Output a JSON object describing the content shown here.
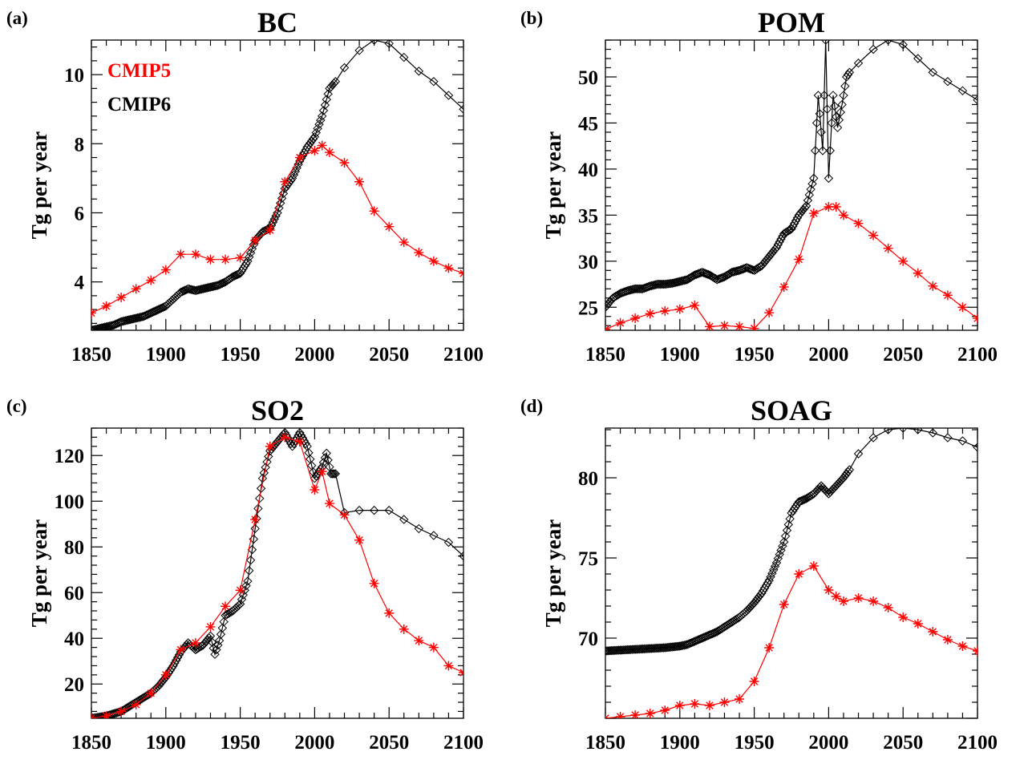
{
  "chart_data": [
    {
      "type": "line",
      "panel_label": "(a)",
      "title": "BC",
      "ylabel": "Tg per year",
      "xlim": [
        1850,
        2100
      ],
      "ylim": [
        2.6,
        11.0
      ],
      "xticks": [
        "1850",
        "1900",
        "1950",
        "2000",
        "2050",
        "2100"
      ],
      "yticks": [
        4,
        6,
        8,
        10
      ],
      "legend": [
        "CMIP5",
        "CMIP6"
      ],
      "legend_colors": [
        "#ff0000",
        "#000000"
      ],
      "series": [
        {
          "name": "CMIP6",
          "color": "#000000",
          "marker": "diamond",
          "x_end_annual": 2014,
          "x": [
            1850,
            1855,
            1860,
            1865,
            1870,
            1875,
            1880,
            1885,
            1890,
            1895,
            1900,
            1905,
            1910,
            1915,
            1920,
            1925,
            1930,
            1935,
            1940,
            1945,
            1950,
            1955,
            1960,
            1965,
            1970,
            1975,
            1980,
            1985,
            1990,
            1995,
            2000,
            2005,
            2010,
            2014,
            2020,
            2030,
            2040,
            2050,
            2060,
            2070,
            2080,
            2090,
            2100
          ],
          "y": [
            2.6,
            2.65,
            2.7,
            2.75,
            2.85,
            2.9,
            2.95,
            3.0,
            3.1,
            3.2,
            3.3,
            3.5,
            3.7,
            3.8,
            3.75,
            3.8,
            3.85,
            3.9,
            4.0,
            4.15,
            4.25,
            4.6,
            5.2,
            5.45,
            5.55,
            6.0,
            6.7,
            7.0,
            7.5,
            7.9,
            8.2,
            8.8,
            9.6,
            9.8,
            10.2,
            10.7,
            11.0,
            10.9,
            10.5,
            10.1,
            9.8,
            9.4,
            9.0
          ]
        },
        {
          "name": "CMIP5",
          "color": "#ff0000",
          "marker": "asterisk",
          "x": [
            1850,
            1860,
            1870,
            1880,
            1890,
            1900,
            1910,
            1920,
            1930,
            1940,
            1950,
            1960,
            1970,
            1980,
            1990,
            2000,
            2005,
            2010,
            2020,
            2030,
            2040,
            2050,
            2060,
            2070,
            2080,
            2090,
            2100
          ],
          "y": [
            3.1,
            3.3,
            3.55,
            3.8,
            4.05,
            4.35,
            4.8,
            4.8,
            4.65,
            4.65,
            4.7,
            5.2,
            5.5,
            6.9,
            7.6,
            7.8,
            7.95,
            7.75,
            7.45,
            6.9,
            6.05,
            5.6,
            5.15,
            4.85,
            4.6,
            4.4,
            4.25
          ]
        }
      ]
    },
    {
      "type": "line",
      "panel_label": "(b)",
      "title": "POM",
      "ylabel": "Tg per year",
      "xlim": [
        1850,
        2100
      ],
      "ylim": [
        22.5,
        54.0
      ],
      "xticks": [
        "1850",
        "1900",
        "1950",
        "2000",
        "2050",
        "2100"
      ],
      "yticks": [
        25,
        30,
        35,
        40,
        45,
        50
      ],
      "series": [
        {
          "name": "CMIP6",
          "color": "#000000",
          "marker": "diamond",
          "x_end_annual": 2014,
          "x": [
            1850,
            1855,
            1860,
            1865,
            1870,
            1875,
            1880,
            1885,
            1890,
            1895,
            1900,
            1905,
            1910,
            1915,
            1920,
            1925,
            1930,
            1935,
            1940,
            1945,
            1950,
            1955,
            1960,
            1965,
            1970,
            1975,
            1980,
            1985,
            1990,
            1993,
            1996,
            1998,
            2000,
            2003,
            2006,
            2009,
            2012,
            2014,
            2020,
            2030,
            2040,
            2050,
            2060,
            2070,
            2080,
            2090,
            2100
          ],
          "y": [
            25.0,
            26.0,
            26.5,
            26.8,
            27.0,
            27.0,
            27.3,
            27.5,
            27.5,
            27.6,
            27.8,
            28.0,
            28.5,
            28.8,
            28.5,
            28.0,
            28.3,
            28.8,
            29.0,
            29.3,
            29.0,
            29.5,
            30.5,
            31.5,
            33.0,
            33.5,
            35.0,
            36.0,
            39.0,
            48.0,
            42.0,
            54.0,
            39.0,
            48.0,
            44.5,
            47.0,
            50.0,
            50.5,
            51.5,
            53.0,
            54.0,
            53.5,
            52.0,
            50.5,
            49.5,
            48.5,
            47.5
          ]
        },
        {
          "name": "CMIP5",
          "color": "#ff0000",
          "marker": "asterisk",
          "x": [
            1850,
            1860,
            1870,
            1880,
            1890,
            1900,
            1910,
            1920,
            1930,
            1940,
            1950,
            1960,
            1970,
            1980,
            1990,
            2000,
            2005,
            2010,
            2020,
            2030,
            2040,
            2050,
            2060,
            2070,
            2080,
            2090,
            2100
          ],
          "y": [
            22.6,
            23.3,
            23.8,
            24.3,
            24.6,
            24.8,
            25.2,
            22.9,
            23.0,
            22.9,
            22.7,
            24.4,
            27.2,
            30.2,
            35.2,
            35.9,
            35.9,
            35.0,
            34.1,
            32.8,
            31.4,
            30.0,
            28.7,
            27.3,
            26.3,
            25.0,
            23.8
          ]
        }
      ]
    },
    {
      "type": "line",
      "panel_label": "(c)",
      "title": "SO2",
      "ylabel": "Tg per year",
      "xlim": [
        1850,
        2100
      ],
      "ylim": [
        5,
        132
      ],
      "xticks": [
        "1850",
        "1900",
        "1950",
        "2000",
        "2050",
        "2100"
      ],
      "yticks": [
        20,
        40,
        60,
        80,
        100,
        120
      ],
      "series": [
        {
          "name": "CMIP6",
          "color": "#000000",
          "marker": "diamond",
          "x_end_annual": 2014,
          "x": [
            1850,
            1855,
            1860,
            1865,
            1870,
            1875,
            1880,
            1885,
            1890,
            1895,
            1900,
            1905,
            1910,
            1915,
            1920,
            1925,
            1930,
            1933,
            1936,
            1940,
            1945,
            1950,
            1955,
            1960,
            1965,
            1970,
            1975,
            1980,
            1985,
            1990,
            1995,
            2000,
            2005,
            2008,
            2011,
            2014,
            2020,
            2030,
            2040,
            2050,
            2060,
            2070,
            2080,
            2090,
            2100
          ],
          "y": [
            5,
            5.5,
            6,
            7,
            8,
            10,
            12,
            14,
            16,
            19,
            23,
            28,
            34,
            38,
            35,
            37,
            41,
            33,
            39,
            50,
            52,
            55,
            65,
            88,
            110,
            122,
            126,
            130,
            124,
            130,
            124,
            110,
            115,
            121,
            112,
            112,
            95,
            96,
            96,
            96,
            92,
            88,
            85,
            82,
            76
          ]
        },
        {
          "name": "CMIP5",
          "color": "#ff0000",
          "marker": "asterisk",
          "x": [
            1850,
            1860,
            1870,
            1880,
            1890,
            1900,
            1910,
            1920,
            1930,
            1940,
            1950,
            1960,
            1970,
            1980,
            1990,
            2000,
            2005,
            2010,
            2020,
            2030,
            2040,
            2050,
            2060,
            2070,
            2080,
            2090,
            2100
          ],
          "y": [
            5,
            6,
            8,
            11,
            16,
            24,
            35,
            38,
            45,
            54,
            61,
            92,
            124,
            128,
            126,
            105,
            113,
            99,
            94,
            83,
            64,
            51,
            44,
            39,
            36,
            28,
            25
          ]
        }
      ]
    },
    {
      "type": "line",
      "panel_label": "(d)",
      "title": "SOAG",
      "ylabel": "Tg per year",
      "xlim": [
        1850,
        2100
      ],
      "ylim": [
        65.0,
        83.1
      ],
      "xticks": [
        "1850",
        "1900",
        "1950",
        "2000",
        "2050",
        "2100"
      ],
      "yticks": [
        70,
        75,
        80
      ],
      "series": [
        {
          "name": "CMIP6",
          "color": "#000000",
          "marker": "diamond",
          "x_end_annual": 2014,
          "x": [
            1850,
            1860,
            1870,
            1880,
            1890,
            1900,
            1905,
            1910,
            1915,
            1920,
            1925,
            1930,
            1935,
            1940,
            1945,
            1950,
            1955,
            1960,
            1965,
            1970,
            1975,
            1980,
            1985,
            1990,
            1995,
            2000,
            2005,
            2010,
            2014,
            2020,
            2030,
            2040,
            2050,
            2060,
            2070,
            2080,
            2090,
            2100
          ],
          "y": [
            69.2,
            69.25,
            69.3,
            69.35,
            69.4,
            69.5,
            69.6,
            69.8,
            70.0,
            70.2,
            70.4,
            70.7,
            71.0,
            71.3,
            71.7,
            72.2,
            72.8,
            73.6,
            74.7,
            76.0,
            77.8,
            78.5,
            78.7,
            79.0,
            79.5,
            79.0,
            79.5,
            80.0,
            80.5,
            81.5,
            82.5,
            83.0,
            83.1,
            83.0,
            82.8,
            82.5,
            82.3,
            81.9
          ]
        },
        {
          "name": "CMIP5",
          "color": "#ff0000",
          "marker": "asterisk",
          "x": [
            1850,
            1860,
            1870,
            1880,
            1890,
            1900,
            1910,
            1920,
            1930,
            1940,
            1950,
            1960,
            1970,
            1980,
            1990,
            2000,
            2005,
            2010,
            2020,
            2030,
            2040,
            2050,
            2060,
            2070,
            2080,
            2090,
            2100
          ],
          "y": [
            65.0,
            65.1,
            65.2,
            65.3,
            65.5,
            65.8,
            65.9,
            65.8,
            66.0,
            66.2,
            67.3,
            69.4,
            72.1,
            74.0,
            74.5,
            73.0,
            72.6,
            72.3,
            72.5,
            72.3,
            71.9,
            71.3,
            70.9,
            70.4,
            69.9,
            69.5,
            69.2
          ]
        }
      ]
    }
  ]
}
